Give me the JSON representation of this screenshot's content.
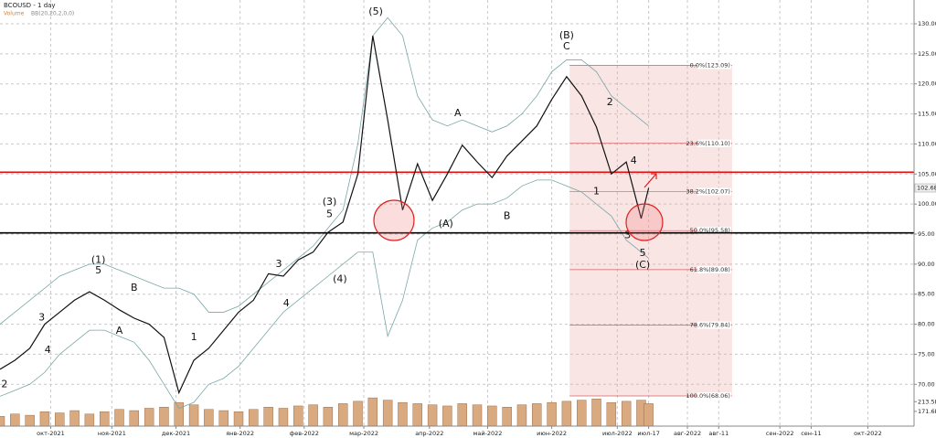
{
  "chart_data": {
    "type": "line",
    "title": "BCOUSD - 1 day",
    "color": "#111111",
    "x": [
      0,
      1,
      2,
      3,
      4,
      5,
      6,
      7,
      8,
      9,
      10,
      11,
      12,
      13,
      14,
      15,
      16,
      17,
      18,
      19,
      20,
      21,
      22,
      23,
      24,
      25,
      26,
      27,
      28,
      29,
      30,
      31,
      32,
      33,
      34,
      35,
      36,
      37,
      38,
      39,
      40,
      41,
      42,
      43,
      43.5
    ],
    "values": [
      72.5,
      74,
      76,
      80,
      82,
      84,
      85.4,
      84,
      82.4,
      81,
      80,
      77.8,
      68.6,
      74,
      76,
      79,
      82,
      84,
      88.4,
      88,
      90.7,
      92,
      95.3,
      97,
      105,
      128,
      114,
      99,
      106.7,
      100.6,
      105,
      109.8,
      107,
      104.4,
      108,
      110.5,
      113,
      117.4,
      121.2,
      118,
      112.8,
      105,
      107,
      97.6,
      102.68
    ],
    "last_price": {
      "value": 102.68,
      "label": "102.68"
    },
    "bands": {
      "name": "BB(20,20,2,0,0)",
      "color": "#7aa6a6",
      "upper": [
        80,
        82,
        84,
        86,
        88,
        89,
        90,
        90,
        89,
        88,
        87,
        86,
        86,
        85,
        82,
        82,
        83,
        85,
        87,
        89,
        91,
        93,
        96,
        99,
        110,
        128,
        131,
        128,
        118,
        114,
        113,
        114,
        113,
        112,
        113,
        115,
        118,
        122,
        124,
        124,
        122,
        118,
        116,
        114,
        113
      ],
      "lower": [
        68,
        69,
        70,
        72,
        75,
        77,
        79,
        79,
        78,
        77,
        74,
        70,
        66,
        67,
        70,
        71,
        73,
        76,
        79,
        82,
        84,
        86,
        88,
        90,
        92,
        92,
        78,
        84,
        94,
        96,
        97,
        99,
        100,
        100,
        101,
        103,
        104,
        104,
        103,
        102,
        100,
        98,
        94,
        92,
        91
      ]
    },
    "series": [
      {
        "name": "Volume",
        "color": "#d9a97f",
        "axis": "y2",
        "values": [
          150,
          160,
          155,
          170,
          165,
          175,
          160,
          170,
          180,
          175,
          185,
          190,
          210,
          200,
          180,
          175,
          170,
          180,
          190,
          185,
          195,
          200,
          190,
          205,
          215,
          230,
          220,
          210,
          205,
          200,
          195,
          205,
          200,
          195,
          190,
          200,
          205,
          210,
          215,
          220,
          225,
          210,
          215,
          220,
          205
        ]
      }
    ],
    "xlim": [
      0,
      61.3
    ],
    "xticks": [
      {
        "value": 3.4,
        "label": "окт-2021"
      },
      {
        "value": 7.5,
        "label": "ноя-2021"
      },
      {
        "value": 11.8,
        "label": "дек-2021"
      },
      {
        "value": 16.1,
        "label": "янв-2022"
      },
      {
        "value": 20.4,
        "label": "фев-2022"
      },
      {
        "value": 24.4,
        "label": "мар-2022"
      },
      {
        "value": 28.8,
        "label": "апр-2022"
      },
      {
        "value": 32.7,
        "label": "май-2022"
      },
      {
        "value": 37,
        "label": "июн-2022"
      },
      {
        "value": 41.4,
        "label": "июл-2022"
      },
      {
        "value": 43.5,
        "label": "июл-17"
      },
      {
        "value": 46.1,
        "label": "авг-2022"
      },
      {
        "value": 48.2,
        "label": "авг-11"
      },
      {
        "value": 52.3,
        "label": "сен-2022"
      },
      {
        "value": 54.4,
        "label": "сен-11"
      },
      {
        "value": 58.2,
        "label": "окт-2022"
      }
    ],
    "ylim": [
      67,
      133.5
    ],
    "yticks": [
      {
        "value": 70,
        "label": "70.00"
      },
      {
        "value": 75,
        "label": "75.00"
      },
      {
        "value": 80,
        "label": "80.00"
      },
      {
        "value": 85,
        "label": "85.00"
      },
      {
        "value": 90,
        "label": "90.00"
      },
      {
        "value": 95,
        "label": "95.00"
      },
      {
        "value": 100,
        "label": "100.00"
      },
      {
        "value": 105,
        "label": "105.00"
      },
      {
        "value": 110,
        "label": "110.00"
      },
      {
        "value": 115,
        "label": "115.00"
      },
      {
        "value": 120,
        "label": "120.00"
      },
      {
        "value": 125,
        "label": "125.00"
      },
      {
        "value": 130,
        "label": "130.00"
      }
    ],
    "y2lim": [
      108,
      250
    ],
    "y2ticks": [
      {
        "value": 213.5,
        "label": "213.5K"
      },
      {
        "value": 171.6,
        "label": "171.6K"
      }
    ],
    "grid": true,
    "hlines": [
      {
        "value": 105.3,
        "color": "#e01010"
      },
      {
        "value": 95.2,
        "color": "#000000"
      }
    ],
    "fib": {
      "xrange": [
        38.2,
        49.1
      ],
      "color": "#d06060",
      "levels": [
        {
          "value": 123.09,
          "label": "0.0%(123.09)"
        },
        {
          "value": 110.1,
          "label": "23.6%(110.10)"
        },
        {
          "value": 102.07,
          "label": "38.2%(102.07)"
        },
        {
          "value": 95.58,
          "label": "50.0%(95.58)"
        },
        {
          "value": 89.08,
          "label": "61.8%(89.08)"
        },
        {
          "value": 79.84,
          "label": "78.6%(79.84)"
        },
        {
          "value": 68.06,
          "label": "100.0%(68.06)"
        }
      ]
    },
    "annotations": [
      {
        "text": "(1)",
        "x": 6.6,
        "y": 90.7
      },
      {
        "text": "5",
        "x": 6.6,
        "y": 88.9
      },
      {
        "text": "3",
        "x": 2.8,
        "y": 81.1
      },
      {
        "text": "4",
        "x": 3.2,
        "y": 75.7
      },
      {
        "text": "2",
        "x": 0.3,
        "y": 70
      },
      {
        "text": "A",
        "x": 8,
        "y": 78.9
      },
      {
        "text": "B",
        "x": 9,
        "y": 86
      },
      {
        "text": "1",
        "x": 13,
        "y": 77.8
      },
      {
        "text": "3",
        "x": 18.7,
        "y": 90
      },
      {
        "text": "4",
        "x": 19.2,
        "y": 83.4
      },
      {
        "text": "(3)",
        "x": 22.1,
        "y": 100.3
      },
      {
        "text": "5",
        "x": 22.1,
        "y": 98.3
      },
      {
        "text": "(4)",
        "x": 22.8,
        "y": 87.5
      },
      {
        "text": "(5)",
        "x": 25.2,
        "y": 132
      },
      {
        "text": "(A)",
        "x": 29.9,
        "y": 96.7
      },
      {
        "text": "A",
        "x": 30.7,
        "y": 115.1
      },
      {
        "text": "B",
        "x": 34,
        "y": 98
      },
      {
        "text": "(B)",
        "x": 38,
        "y": 128
      },
      {
        "text": "C",
        "x": 38,
        "y": 126.2
      },
      {
        "text": "2",
        "x": 40.9,
        "y": 116.9
      },
      {
        "text": "1",
        "x": 40,
        "y": 102.1
      },
      {
        "text": "4",
        "x": 42.5,
        "y": 107.2
      },
      {
        "text": "3",
        "x": 42.1,
        "y": 94.8
      },
      {
        "text": "5",
        "x": 43.1,
        "y": 91.8
      },
      {
        "text": "(C)",
        "x": 43.1,
        "y": 89.8
      }
    ]
  }
}
